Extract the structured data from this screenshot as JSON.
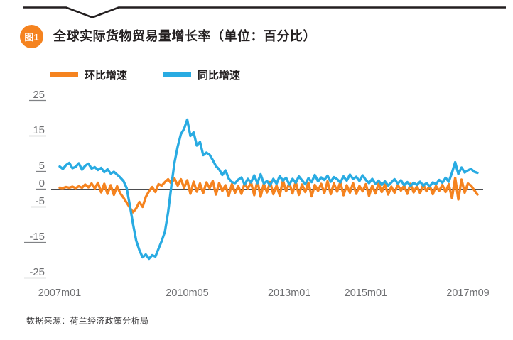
{
  "header": {
    "badge": "图1",
    "title": "全球实际货物贸易量增长率（单位：百分比）"
  },
  "legend": [
    {
      "label": "环比增速",
      "color": "#F5831F"
    },
    {
      "label": "同比增速",
      "color": "#29ABE2"
    }
  ],
  "source": "数据来源：荷兰经济政策分析局",
  "chart_data": {
    "type": "line",
    "title": "全球实际货物贸易量增长率",
    "unit": "百分比",
    "x_range": [
      "2007m01",
      "2017m12"
    ],
    "x_ticks": [
      {
        "label": "2007m01",
        "month_index": 0
      },
      {
        "label": "2010m05",
        "month_index": 40
      },
      {
        "label": "2013m01",
        "month_index": 72
      },
      {
        "label": "2015m01",
        "month_index": 96
      },
      {
        "label": "2017m09",
        "month_index": 128
      }
    ],
    "y_ticks": [
      25,
      15,
      5,
      0,
      -5,
      -15,
      -25
    ],
    "ylim": [
      -27,
      27
    ],
    "grid": false,
    "zero_line": true,
    "legend_position": "top",
    "series": [
      {
        "name": "环比增速",
        "color": "#F5831F",
        "values": [
          0.4,
          0.3,
          0.6,
          0.4,
          0.7,
          0.3,
          0.8,
          0.4,
          1.3,
          0.5,
          1.6,
          0.2,
          1.8,
          -0.9,
          1.5,
          -1.3,
          1.1,
          -1.6,
          0.8,
          -1.2,
          -2.4,
          -3.8,
          -5.2,
          -6.5,
          -5.4,
          -3.6,
          -5.0,
          -2.2,
          -0.6,
          0.6,
          -0.8,
          1.4,
          1.0,
          2.0,
          2.8,
          1.6,
          3.0,
          1.0,
          2.8,
          0.4,
          2.5,
          -1.3,
          2.1,
          -0.7,
          1.6,
          -1.1,
          1.9,
          0.3,
          2.3,
          -1.5,
          1.7,
          -0.5,
          1.1,
          -1.9,
          1.4,
          -1.0,
          0.8,
          -1.3,
          1.6,
          0.1,
          1.9,
          -1.7,
          2.3,
          -2.1,
          1.5,
          -0.9,
          2.0,
          -1.4,
          1.0,
          -1.8,
          2.5,
          -0.6,
          1.7,
          -1.2,
          2.1,
          -1.6,
          1.3,
          -0.8,
          1.8,
          -2.0,
          1.2,
          -0.5,
          1.5,
          -1.1,
          2.2,
          -1.4,
          1.6,
          -0.7,
          2.0,
          -1.7,
          1.1,
          -1.0,
          1.7,
          -1.3,
          0.9,
          -0.6,
          1.4,
          -1.9,
          1.0,
          -1.2,
          1.6,
          -0.8,
          1.3,
          -1.5,
          0.7,
          -1.0,
          1.2,
          -0.4,
          1.0,
          -1.3,
          1.5,
          -0.9,
          0.8,
          -1.1,
          1.3,
          -0.6,
          1.0,
          -1.4,
          0.9,
          -0.5,
          1.2,
          -0.8,
          1.4,
          -2.5,
          3.2,
          -2.9,
          2.7,
          -1.0,
          1.6,
          1.0,
          -0.3,
          -1.5
        ]
      },
      {
        "name": "同比增速",
        "color": "#29ABE2",
        "values": [
          6.4,
          5.7,
          6.8,
          7.4,
          5.9,
          6.3,
          7.3,
          5.5,
          6.6,
          7.2,
          5.8,
          6.2,
          5.4,
          6.0,
          4.8,
          5.6,
          4.4,
          4.9,
          4.1,
          3.3,
          2.3,
          0.3,
          -4.5,
          -9.8,
          -14.5,
          -17.2,
          -19.2,
          -18.4,
          -19.6,
          -18.6,
          -19.0,
          -16.8,
          -14.6,
          -12.0,
          -6.5,
          0.8,
          7.5,
          12.0,
          15.5,
          17.0,
          19.6,
          15.0,
          16.0,
          12.3,
          13.3,
          9.6,
          10.3,
          9.7,
          8.2,
          6.5,
          5.6,
          4.0,
          5.3,
          3.0,
          2.0,
          1.7,
          2.7,
          3.3,
          1.3,
          2.9,
          1.9,
          3.9,
          1.7,
          4.2,
          1.6,
          2.3,
          1.1,
          2.9,
          1.5,
          3.7,
          2.4,
          3.2,
          1.3,
          2.9,
          1.8,
          3.6,
          2.5,
          1.4,
          3.1,
          2.0,
          4.0,
          2.2,
          3.3,
          2.6,
          3.8,
          2.1,
          3.4,
          2.8,
          1.9,
          3.6,
          2.4,
          4.1,
          2.9,
          3.5,
          2.3,
          3.9,
          2.6,
          1.7,
          2.9,
          1.5,
          2.4,
          1.2,
          2.2,
          1.0,
          1.9,
          2.8,
          1.6,
          2.5,
          1.1,
          2.0,
          0.9,
          1.8,
          1.2,
          2.1,
          1.0,
          1.7,
          0.8,
          1.9,
          1.4,
          2.6,
          1.8,
          3.2,
          2.1,
          4.6,
          7.6,
          4.3,
          6.1,
          4.7,
          5.3,
          5.7,
          4.9,
          4.6
        ]
      }
    ]
  }
}
